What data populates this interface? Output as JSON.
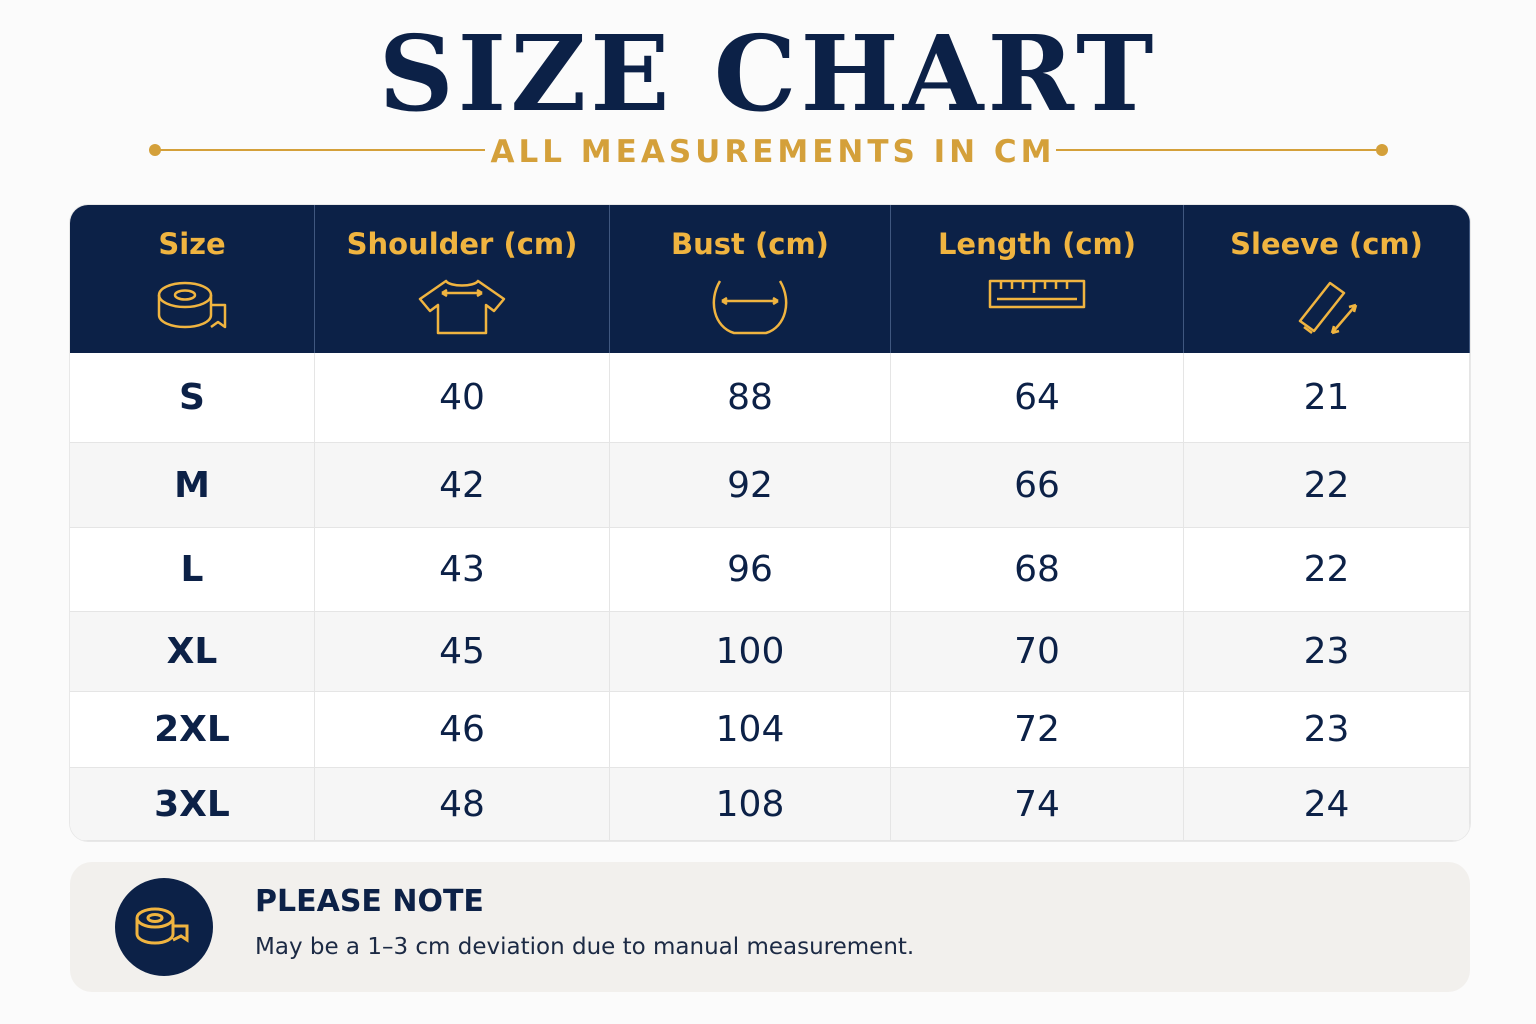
{
  "header": {
    "title": "SIZE CHART",
    "subtitle": "ALL MEASUREMENTS IN CM"
  },
  "table": {
    "columns": [
      "Size",
      "Shoulder (cm)",
      "Bust (cm)",
      "Length (cm)",
      "Sleeve (cm)"
    ],
    "rows": [
      [
        "S",
        40,
        88,
        64,
        21
      ],
      [
        "M",
        42,
        92,
        66,
        22
      ],
      [
        "L",
        43,
        96,
        68,
        22
      ],
      [
        "XL",
        45,
        100,
        70,
        23
      ],
      [
        "2XL",
        46,
        104,
        72,
        23
      ],
      [
        "3XL",
        48,
        108,
        74,
        24
      ]
    ]
  },
  "note": {
    "title": "PLEASE NOTE",
    "text": "May be a 1–3 cm deviation due to manual measurement."
  }
}
